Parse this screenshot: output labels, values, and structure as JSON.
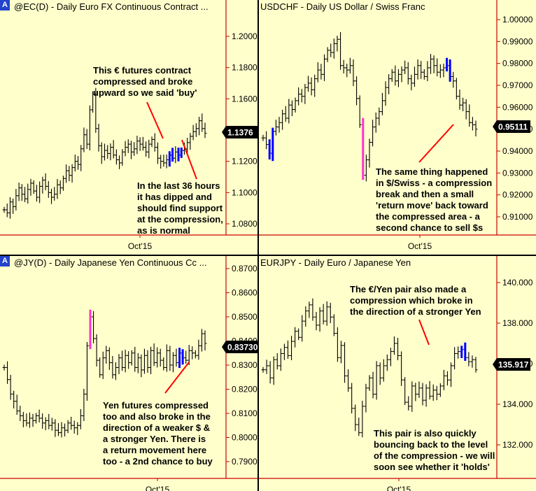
{
  "colors": {
    "background": "#ffffcc",
    "axis": "#cc0000",
    "bars": "#000000",
    "compression": "#0000ff",
    "breakout": "#ff33cc",
    "arrow": "#ff0000",
    "price_label_bg": "#000000"
  },
  "panels": [
    {
      "id": "ec",
      "badge": "A",
      "title": "@EC(D) - Daily  Euro FX Continuous Contract  ...",
      "x_label": "Oct'15",
      "price_label": "1.1376",
      "annotations": [
        "This € futures contract\ncompressed and broke\nupward so we said 'buy'",
        "In the last 36 hours\nit has dipped and\nshould find support\nat the compression,\nas is normal"
      ]
    },
    {
      "id": "usdchf",
      "badge": "",
      "title": "USDCHF - Daily  US Dollar / Swiss Franc",
      "x_label": "Oct'15",
      "price_label": "0.95111",
      "annotations": [
        "The same thing happened\nin $/Swiss - a compression\nbreak and then a small\n'return move' back toward\nthe compressed area - a\nsecond chance to sell $s"
      ]
    },
    {
      "id": "jy",
      "badge": "A",
      "title": "@JY(D) - Daily  Japanese Yen Continuous Cc ...",
      "x_label": "Oct'15",
      "price_label": "0.83730",
      "annotations": [
        "Yen futures compressed\ntoo and also broke in the\ndirection of a weaker $ &\na stronger Yen. There is\na return movement here\ntoo - a 2nd chance to buy"
      ]
    },
    {
      "id": "eurjpy",
      "badge": "",
      "title": "EURJPY - Daily  Euro / Japanese Yen",
      "x_label": "Oct'15",
      "price_label": "135.917",
      "annotations": [
        "The €/Yen pair also made a\ncompression which broke in\nthe direction of a stronger Yen",
        "This pair is also quickly\nbouncing back to the level\nof the compression - we will\nsoon see whether it 'holds'"
      ]
    }
  ],
  "chart_data": [
    {
      "type": "ohlc",
      "title": "@EC(D) - Daily  Euro FX Continuous Contract  ...",
      "x_tick": "Oct'15",
      "y_ticks": [
        "1.2000",
        "1.1800",
        "1.1600",
        "1.1400",
        "1.1200",
        "1.1000",
        "1.0800"
      ],
      "ylim": [
        1.07,
        1.21
      ],
      "last_price": 1.1376,
      "closes": [
        1.089,
        1.087,
        1.094,
        1.091,
        1.098,
        1.103,
        1.099,
        1.096,
        1.102,
        1.106,
        1.101,
        1.097,
        1.104,
        1.108,
        1.104,
        1.1,
        1.097,
        1.099,
        1.105,
        1.103,
        1.109,
        1.114,
        1.111,
        1.116,
        1.12,
        1.118,
        1.128,
        1.137,
        1.131,
        1.153,
        1.163,
        1.141,
        1.13,
        1.123,
        1.127,
        1.125,
        1.129,
        1.124,
        1.121,
        1.119,
        1.126,
        1.129,
        1.131,
        1.126,
        1.128,
        1.133,
        1.131,
        1.129,
        1.126,
        1.131,
        1.134,
        1.129,
        1.122,
        1.12,
        1.119,
        1.121,
        1.124,
        1.122,
        1.126,
        1.124,
        1.127,
        1.128,
        1.132,
        1.136,
        1.139,
        1.141,
        1.146,
        1.141,
        1.138
      ],
      "compression_bars": [
        56,
        57,
        59,
        60
      ],
      "breakout_bars": []
    },
    {
      "type": "ohlc",
      "title": "USDCHF - Daily  US Dollar / Swiss Franc",
      "x_tick": "Oct'15",
      "y_ticks": [
        "1.00000",
        "0.99000",
        "0.98000",
        "0.97000",
        "0.96000",
        "0.95000",
        "0.94000",
        "0.93000",
        "0.92000",
        "0.91000"
      ],
      "ylim": [
        0.9,
        1.007
      ],
      "last_price": 0.95111,
      "closes": [
        0.946,
        0.943,
        0.939,
        0.949,
        0.951,
        0.953,
        0.957,
        0.955,
        0.961,
        0.959,
        0.963,
        0.966,
        0.965,
        0.969,
        0.971,
        0.968,
        0.973,
        0.977,
        0.975,
        0.982,
        0.986,
        0.985,
        0.989,
        0.991,
        0.979,
        0.978,
        0.977,
        0.979,
        0.972,
        0.964,
        0.952,
        0.929,
        0.936,
        0.944,
        0.951,
        0.955,
        0.958,
        0.963,
        0.969,
        0.973,
        0.976,
        0.972,
        0.975,
        0.977,
        0.978,
        0.973,
        0.971,
        0.975,
        0.979,
        0.976,
        0.974,
        0.978,
        0.982,
        0.979,
        0.976,
        0.977,
        0.978,
        0.979,
        0.974,
        0.972,
        0.965,
        0.961,
        0.962,
        0.958,
        0.953,
        0.952,
        0.95
      ],
      "compression_bars": [
        2,
        3,
        57,
        58
      ],
      "breakout_bars": [
        31
      ]
    },
    {
      "type": "ohlc",
      "title": "@JY(D) - Daily  Japanese Yen Continuous Cc ...",
      "x_tick": "Oct'15",
      "y_ticks": [
        "0.87000",
        "0.86000",
        "0.85000",
        "0.84000",
        "0.83000",
        "0.82000",
        "0.81000",
        "0.80000",
        "0.79000"
      ],
      "ylim": [
        0.785,
        0.875
      ],
      "last_price": 0.8373,
      "closes": [
        0.829,
        0.824,
        0.818,
        0.815,
        0.811,
        0.809,
        0.807,
        0.806,
        0.808,
        0.807,
        0.809,
        0.808,
        0.806,
        0.807,
        0.805,
        0.806,
        0.803,
        0.802,
        0.804,
        0.803,
        0.806,
        0.805,
        0.804,
        0.805,
        0.809,
        0.818,
        0.838,
        0.85,
        0.841,
        0.832,
        0.826,
        0.833,
        0.836,
        0.831,
        0.826,
        0.829,
        0.833,
        0.829,
        0.834,
        0.831,
        0.835,
        0.829,
        0.833,
        0.828,
        0.834,
        0.829,
        0.836,
        0.831,
        0.835,
        0.832,
        0.829,
        0.836,
        0.83,
        0.834,
        0.831,
        0.835,
        0.833,
        0.832,
        0.836,
        0.835,
        0.834,
        0.838,
        0.843,
        0.839
      ],
      "compression_bars": [
        55,
        56
      ],
      "breakout_bars": [
        27
      ]
    },
    {
      "type": "ohlc",
      "title": "EURJPY - Daily  Euro / Japanese Yen",
      "x_tick": "Oct'15",
      "y_ticks": [
        "140.000",
        "138.000",
        "136.000",
        "134.000",
        "132.000"
      ],
      "ylim": [
        130.8,
        141.2
      ],
      "last_price": 135.917,
      "closes": [
        135.7,
        135.9,
        135.3,
        136.2,
        135.9,
        136.5,
        136.8,
        136.4,
        137.1,
        137.6,
        137.3,
        138.1,
        138.6,
        138.9,
        138.3,
        137.9,
        138.6,
        138.1,
        138.8,
        138.3,
        137.5,
        136.3,
        136.9,
        135.4,
        134.8,
        133.8,
        133.0,
        132.6,
        133.9,
        134.8,
        135.3,
        134.5,
        135.9,
        135.3,
        135.9,
        136.2,
        136.6,
        137.0,
        136.4,
        135.2,
        134.1,
        133.9,
        134.9,
        134.5,
        134.8,
        134.2,
        134.8,
        134.4,
        134.7,
        134.5,
        134.9,
        135.4,
        135.2,
        135.9,
        136.5,
        136.6,
        136.7,
        136.3,
        136.1,
        136.2,
        135.7
      ],
      "compression_bars": [
        56,
        57
      ],
      "breakout_bars": []
    }
  ]
}
